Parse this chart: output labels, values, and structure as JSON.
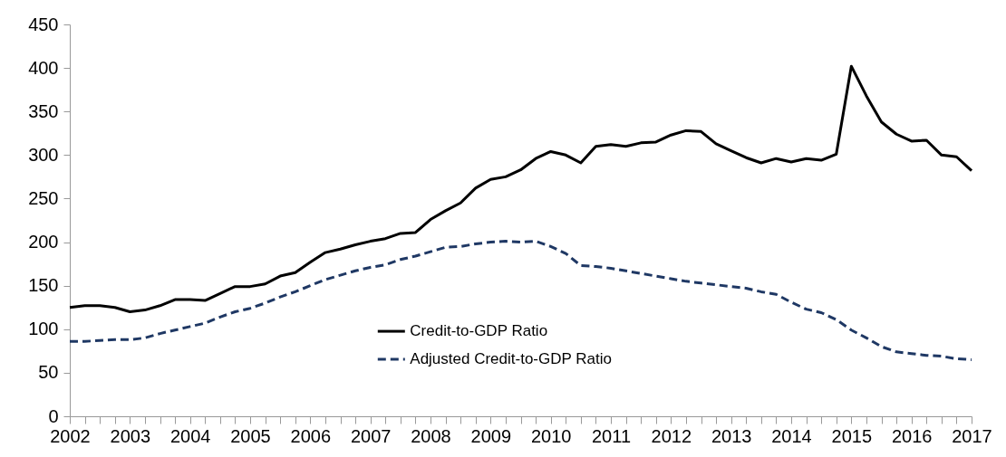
{
  "chart_data": {
    "type": "line",
    "x": [
      2002,
      2002.25,
      2002.5,
      2002.75,
      2003,
      2003.25,
      2003.5,
      2003.75,
      2004,
      2004.25,
      2004.5,
      2004.75,
      2005,
      2005.25,
      2005.5,
      2005.75,
      2006,
      2006.25,
      2006.5,
      2006.75,
      2007,
      2007.25,
      2007.5,
      2007.75,
      2008,
      2008.25,
      2008.5,
      2008.75,
      2009,
      2009.25,
      2009.5,
      2009.75,
      2010,
      2010.25,
      2010.5,
      2010.75,
      2011,
      2011.25,
      2011.5,
      2011.75,
      2012,
      2012.25,
      2012.5,
      2012.75,
      2013,
      2013.25,
      2013.5,
      2013.75,
      2014,
      2014.25,
      2014.5,
      2014.75,
      2015,
      2015.25,
      2015.5,
      2015.75,
      2016,
      2016.25,
      2016.5,
      2016.75,
      2017
    ],
    "series": [
      {
        "name": "Credit-to-GDP Ratio",
        "color": "#000000",
        "line_style": "solid",
        "values": [
          125,
          127,
          127,
          125,
          120,
          122,
          127,
          134,
          134,
          133,
          141,
          149,
          149,
          152,
          161,
          165,
          177,
          188,
          192,
          197,
          201,
          204,
          210,
          211,
          226,
          236,
          245,
          262,
          272,
          275,
          283,
          296,
          304,
          300,
          291,
          310,
          312,
          310,
          314,
          315,
          323,
          328,
          327,
          313,
          305,
          297,
          291,
          296,
          292,
          296,
          294,
          301,
          402,
          368,
          338,
          324,
          316,
          317,
          300,
          298,
          282
        ]
      },
      {
        "name": "Adjusted Credit-to-GDP Ratio",
        "color": "#1f3864",
        "line_style": "dashed",
        "values": [
          86,
          86,
          87,
          88,
          88,
          90,
          95,
          99,
          103,
          107,
          114,
          120,
          124,
          130,
          137,
          143,
          150,
          157,
          162,
          167,
          171,
          174,
          180,
          184,
          189,
          194,
          195,
          198,
          200,
          201,
          200,
          201,
          195,
          187,
          173,
          172,
          170,
          167,
          164,
          161,
          158,
          155,
          153,
          151,
          149,
          147,
          143,
          140,
          131,
          123,
          119,
          111,
          99,
          90,
          80,
          74,
          72,
          70,
          69,
          66,
          65
        ]
      }
    ],
    "xlim": [
      2002,
      2017
    ],
    "xticks": [
      2002,
      {
        "value": 2002.25,
        "label": null
      },
      {
        "value": 2002.5,
        "label": null
      },
      {
        "value": 2002.75,
        "label": null
      },
      2003,
      {
        "value": 2003.25,
        "label": null
      },
      {
        "value": 2003.5,
        "label": null
      },
      {
        "value": 2003.75,
        "label": null
      },
      2004,
      {
        "value": 2004.25,
        "label": null
      },
      {
        "value": 2004.5,
        "label": null
      },
      {
        "value": 2004.75,
        "label": null
      },
      2005,
      {
        "value": 2005.25,
        "label": null
      },
      {
        "value": 2005.5,
        "label": null
      },
      {
        "value": 2005.75,
        "label": null
      },
      2006,
      {
        "value": 2006.25,
        "label": null
      },
      {
        "value": 2006.5,
        "label": null
      },
      {
        "value": 2006.75,
        "label": null
      },
      2007,
      {
        "value": 2007.25,
        "label": null
      },
      {
        "value": 2007.5,
        "label": null
      },
      {
        "value": 2007.75,
        "label": null
      },
      2008,
      {
        "value": 2008.25,
        "label": null
      },
      {
        "value": 2008.5,
        "label": null
      },
      {
        "value": 2008.75,
        "label": null
      },
      2009,
      {
        "value": 2009.25,
        "label": null
      },
      {
        "value": 2009.5,
        "label": null
      },
      {
        "value": 2009.75,
        "label": null
      },
      2010,
      {
        "value": 2010.25,
        "label": null
      },
      {
        "value": 2010.5,
        "label": null
      },
      {
        "value": 2010.75,
        "label": null
      },
      2011,
      {
        "value": 2011.25,
        "label": null
      },
      {
        "value": 2011.5,
        "label": null
      },
      {
        "value": 2011.75,
        "label": null
      },
      2012,
      {
        "value": 2012.25,
        "label": null
      },
      {
        "value": 2012.5,
        "label": null
      },
      {
        "value": 2012.75,
        "label": null
      },
      2013,
      {
        "value": 2013.25,
        "label": null
      },
      {
        "value": 2013.5,
        "label": null
      },
      {
        "value": 2013.75,
        "label": null
      },
      2014,
      {
        "value": 2014.25,
        "label": null
      },
      {
        "value": 2014.5,
        "label": null
      },
      {
        "value": 2014.75,
        "label": null
      },
      2015,
      {
        "value": 2015.25,
        "label": null
      },
      {
        "value": 2015.5,
        "label": null
      },
      {
        "value": 2015.75,
        "label": null
      },
      2016,
      {
        "value": 2016.25,
        "label": null
      },
      {
        "value": 2016.5,
        "label": null
      },
      {
        "value": 2016.75,
        "label": null
      },
      2017
    ],
    "ylim": [
      0,
      450
    ],
    "yticks": [
      0,
      50,
      100,
      150,
      200,
      250,
      300,
      350,
      400,
      450
    ],
    "grid": false,
    "legend": "bottom"
  }
}
